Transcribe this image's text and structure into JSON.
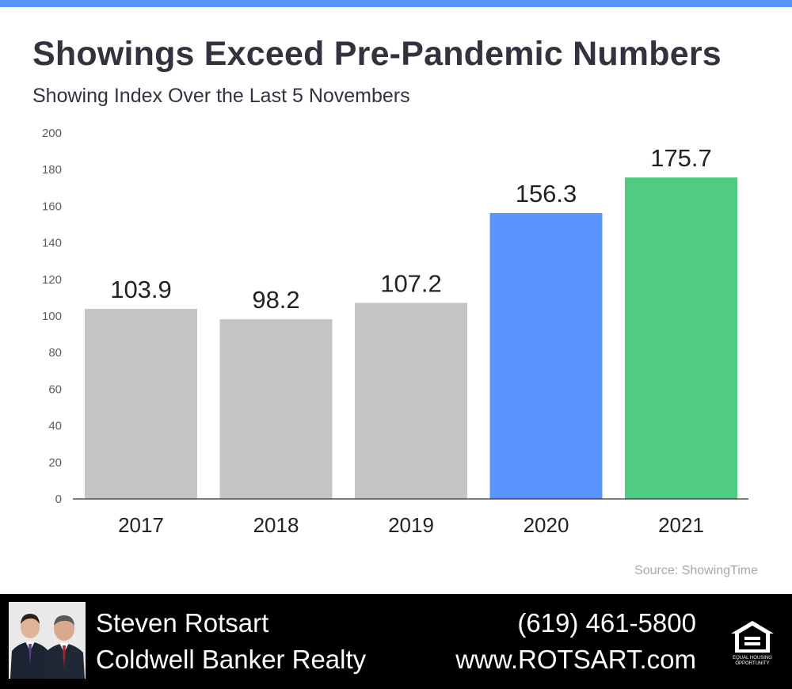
{
  "header": {
    "title": "Showings Exceed Pre-Pandemic Numbers",
    "subtitle": "Showing Index Over the Last 5 Novembers"
  },
  "chart_data": {
    "type": "bar",
    "title": "Showings Exceed Pre-Pandemic Numbers",
    "subtitle": "Showing Index Over the Last 5 Novembers",
    "xlabel": "",
    "ylabel": "",
    "categories": [
      "2017",
      "2018",
      "2019",
      "2020",
      "2021"
    ],
    "values": [
      103.9,
      98.2,
      107.2,
      156.3,
      175.7
    ],
    "value_labels": [
      "103.9",
      "98.2",
      "107.2",
      "156.3",
      "175.7"
    ],
    "bar_colors": [
      "#c4c4c4",
      "#c4c4c4",
      "#c4c4c4",
      "#5b94fd",
      "#4fcb84"
    ],
    "ylim": [
      0,
      200
    ],
    "yticks": [
      0,
      20,
      40,
      60,
      80,
      100,
      120,
      140,
      160,
      180,
      200
    ],
    "grid": false,
    "legend": "none"
  },
  "source": "Source: ShowingTime",
  "footer": {
    "agent_name": "Steven Rotsart",
    "brokerage": "Coldwell Banker Realty",
    "phone": "(619) 461-5800",
    "website": "www.ROTSART.com",
    "eho_text": "EQUAL HOUSING OPPORTUNITY"
  },
  "colors": {
    "top_bar": "#5b94fd",
    "title_text": "#33333f",
    "footer_bg": "#000000"
  }
}
